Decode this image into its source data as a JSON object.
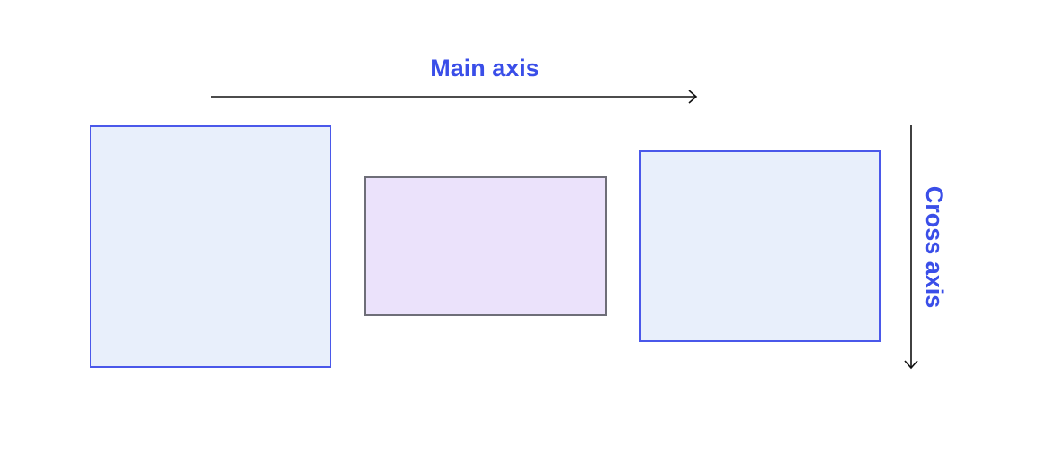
{
  "labels": {
    "main_axis": "Main axis",
    "cross_axis": "Cross axis"
  },
  "colors": {
    "label": "#3a4ee8",
    "arrow": "#111111",
    "blue_box_fill": "#e8effb",
    "blue_box_border": "#4a58ea",
    "purple_box_fill": "#ebe2fb",
    "purple_box_border": "#6e6e78"
  }
}
